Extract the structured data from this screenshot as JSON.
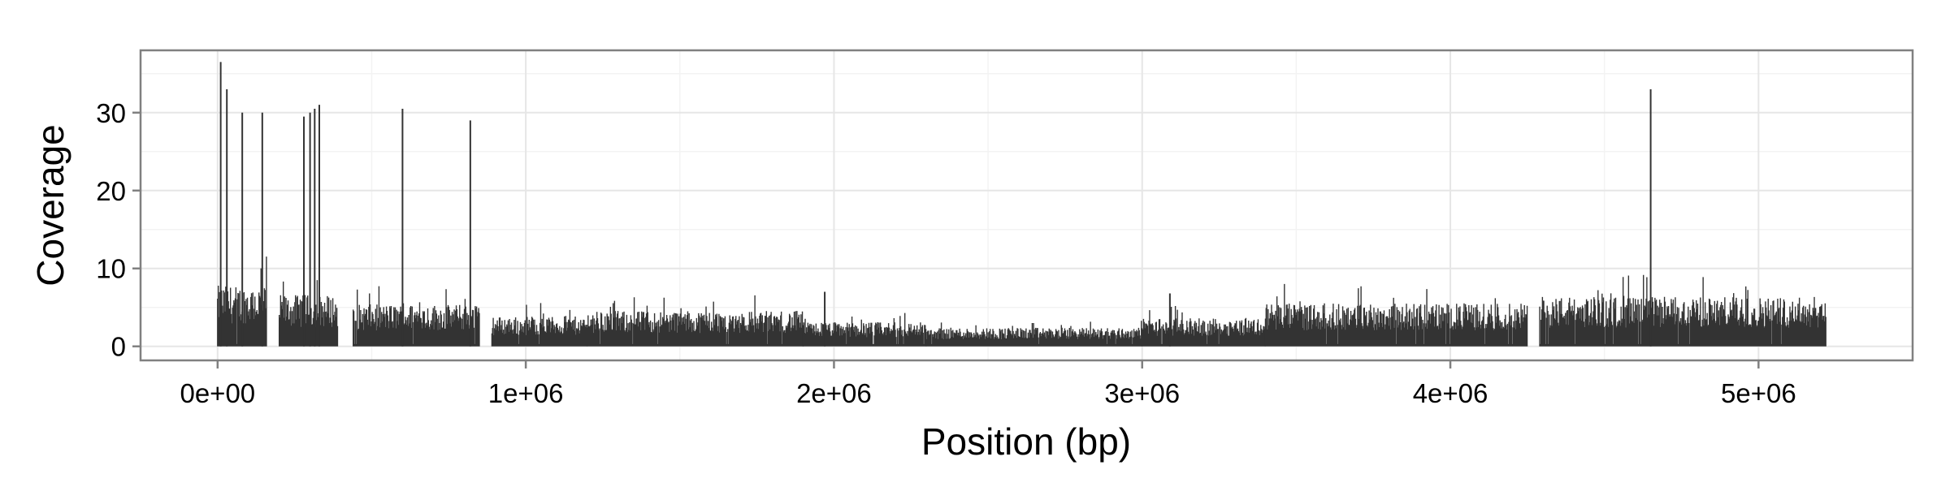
{
  "chart_data": {
    "type": "bar",
    "title": "",
    "xlabel": "Position (bp)",
    "ylabel": "Coverage",
    "xlim": [
      -250000,
      5500000
    ],
    "ylim": [
      -1.8,
      38
    ],
    "grid": true,
    "legend": "none",
    "colors": {
      "bars": "#333333",
      "panel_border": "#808080",
      "grid_major": "#e6e6e6",
      "grid_minor": "#f3f3f3"
    },
    "x_ticks": [
      {
        "value": 0,
        "label": "0e+00"
      },
      {
        "value": 1000000,
        "label": "1e+06"
      },
      {
        "value": 2000000,
        "label": "2e+06"
      },
      {
        "value": 3000000,
        "label": "3e+06"
      },
      {
        "value": 4000000,
        "label": "4e+06"
      },
      {
        "value": 5000000,
        "label": "5e+06"
      }
    ],
    "y_ticks": [
      {
        "value": 0,
        "label": "0"
      },
      {
        "value": 10,
        "label": "10"
      },
      {
        "value": 20,
        "label": "20"
      },
      {
        "value": 30,
        "label": "30"
      }
    ],
    "coverage_profile": [
      {
        "start": 0,
        "end": 160000,
        "level": 6.5
      },
      {
        "start": 200000,
        "end": 390000,
        "level": 5.5
      },
      {
        "start": 440000,
        "end": 850000,
        "level": 4.5
      },
      {
        "start": 890000,
        "end": 1200000,
        "level": 3.2
      },
      {
        "start": 1200000,
        "end": 1900000,
        "level": 3.8
      },
      {
        "start": 1900000,
        "end": 2300000,
        "level": 2.6
      },
      {
        "start": 2300000,
        "end": 3000000,
        "level": 2.0
      },
      {
        "start": 3000000,
        "end": 3400000,
        "level": 3.0
      },
      {
        "start": 3400000,
        "end": 4250000,
        "level": 4.6
      },
      {
        "start": 4290000,
        "end": 5220000,
        "level": 5.3
      }
    ],
    "peaks": [
      {
        "x": 10000,
        "y": 36.5
      },
      {
        "x": 30000,
        "y": 33.0
      },
      {
        "x": 80000,
        "y": 30.0
      },
      {
        "x": 145000,
        "y": 30.0
      },
      {
        "x": 280000,
        "y": 29.5
      },
      {
        "x": 300000,
        "y": 30.0
      },
      {
        "x": 315000,
        "y": 30.5
      },
      {
        "x": 330000,
        "y": 31.0
      },
      {
        "x": 600000,
        "y": 30.5
      },
      {
        "x": 820000,
        "y": 29.0
      },
      {
        "x": 1970000,
        "y": 7.0
      },
      {
        "x": 3090000,
        "y": 6.8
      },
      {
        "x": 4650000,
        "y": 33.0
      }
    ]
  }
}
